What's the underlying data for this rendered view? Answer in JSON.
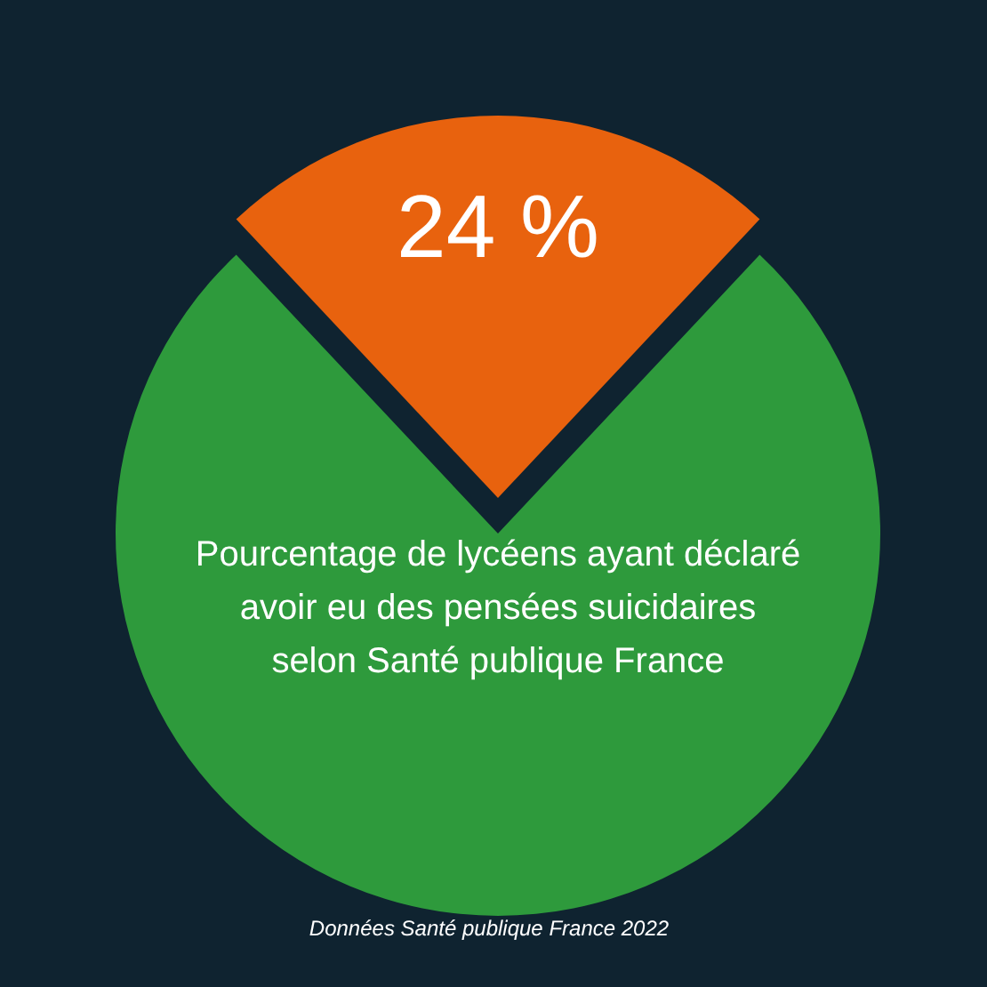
{
  "chart_data": {
    "type": "pie",
    "categories": [
      null,
      null
    ],
    "values": [
      24,
      76
    ],
    "colors": [
      "#e8620e",
      "#2e9a3c"
    ],
    "value_labels": [
      "24 %",
      null
    ],
    "annotations": [
      "Pourcentage de lycéens ayant déclaré avoir eu des pensées suicidaires selon Santé publique France",
      "Données Santé publique France 2022"
    ]
  }
}
